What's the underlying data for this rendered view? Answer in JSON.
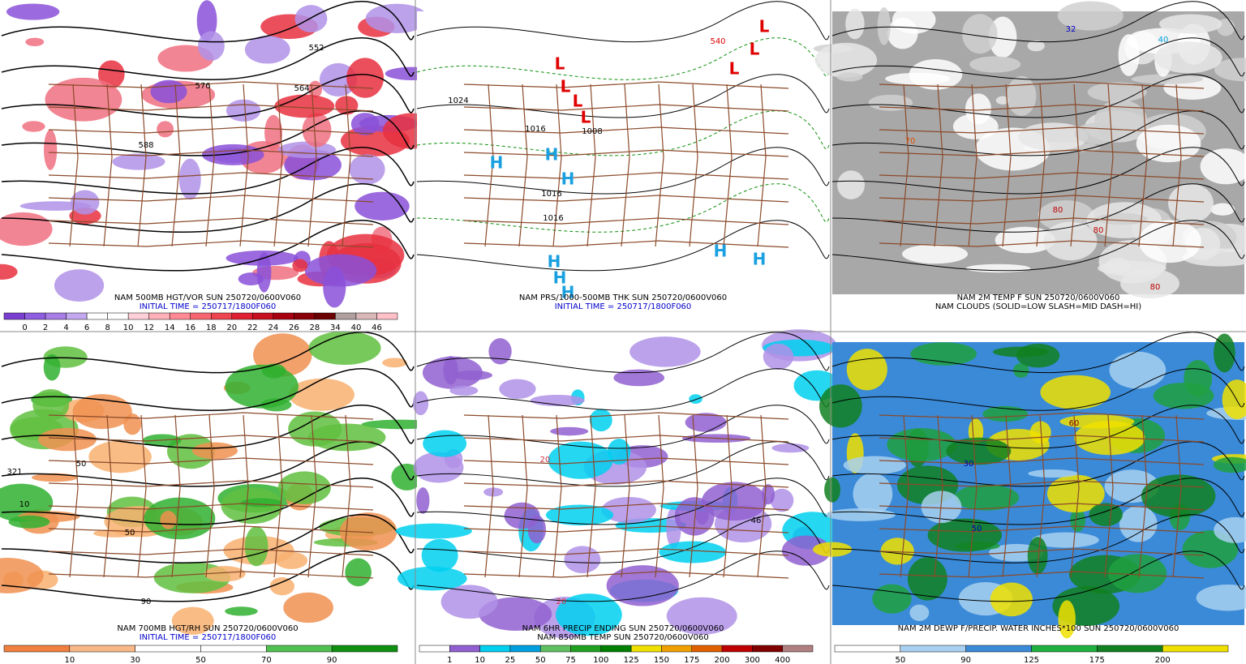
{
  "panels": [
    {
      "caption": "NAM 500MB HGT/VOR SUN 250720/0600V060",
      "subcaption": "INITIAL TIME = 250717/1800F060",
      "subcaption_color": "#0000cc",
      "background": "#ffffff",
      "colorbar": {
        "labels": [
          "0",
          "2",
          "4",
          "6",
          "8",
          "10",
          "12",
          "14",
          "16",
          "18",
          "20",
          "22",
          "24",
          "26",
          "28",
          "34",
          "40",
          "46"
        ],
        "colors": [
          "#7a3fd0",
          "#8f5ee0",
          "#a77ee8",
          "#c3a8f0",
          "#ffffff",
          "#ffffff",
          "#ffd0d8",
          "#ffb0b8",
          "#ff8a94",
          "#f76670",
          "#ee4450",
          "#e02030",
          "#c81020",
          "#a80010",
          "#8a0008",
          "#6a0000",
          "#b0a0a0",
          "#d8b8b8",
          "#ffc0c8"
        ]
      },
      "map_labels": [
        {
          "text": "552",
          "color": "#000000"
        },
        {
          "text": "576",
          "color": "#000000"
        },
        {
          "text": "564",
          "color": "#000000"
        },
        {
          "text": "588",
          "color": "#000000"
        }
      ]
    },
    {
      "caption": "NAM PRS/1000-500MB THK SUN 250720/0600V060",
      "subcaption": "INITIAL TIME = 250717/1800F060",
      "subcaption_color": "#0000cc",
      "background": "#ffffff",
      "map_labels": [
        {
          "text": "1024",
          "color": "#000000"
        },
        {
          "text": "1016",
          "color": "#000000"
        },
        {
          "text": "1008",
          "color": "#000000"
        },
        {
          "text": "1016",
          "color": "#000000"
        },
        {
          "text": "1016",
          "color": "#000000"
        },
        {
          "text": "540",
          "color": "#e00000"
        },
        {
          "text": "L",
          "color": "#e00000"
        },
        {
          "text": "L",
          "color": "#e00000"
        },
        {
          "text": "L",
          "color": "#e00000"
        },
        {
          "text": "L",
          "color": "#e00000"
        },
        {
          "text": "L",
          "color": "#e00000"
        },
        {
          "text": "L",
          "color": "#e00000"
        },
        {
          "text": "L",
          "color": "#e00000"
        },
        {
          "text": "H",
          "color": "#1aa0e0"
        },
        {
          "text": "H",
          "color": "#1aa0e0"
        },
        {
          "text": "H",
          "color": "#1aa0e0"
        },
        {
          "text": "H",
          "color": "#1aa0e0"
        },
        {
          "text": "H",
          "color": "#1aa0e0"
        },
        {
          "text": "H",
          "color": "#1aa0e0"
        },
        {
          "text": "H",
          "color": "#1aa0e0"
        },
        {
          "text": "H",
          "color": "#1aa0e0"
        }
      ]
    },
    {
      "caption": "NAM 2M TEMP F SUN 250720/0600V060",
      "subcaption": "NAM CLOUDS (SOLID=LOW SLASH=MID DASH=HI)",
      "subcaption_color": "#000000",
      "background": "#a8a8a8",
      "map_labels": [
        {
          "text": "70",
          "color": "#e05000"
        },
        {
          "text": "80",
          "color": "#c00000"
        },
        {
          "text": "80",
          "color": "#c00000"
        },
        {
          "text": "80",
          "color": "#c00000"
        },
        {
          "text": "32",
          "color": "#0000cc"
        },
        {
          "text": "40",
          "color": "#00a0e0"
        }
      ]
    },
    {
      "caption": "NAM 700MB HGT/RH SUN 250720/0600V060",
      "subcaption": "INITIAL TIME = 250717/1800F060",
      "subcaption_color": "#0000cc",
      "background": "#ffffff",
      "colorbar": {
        "labels": [
          "10",
          "30",
          "50",
          "70",
          "90"
        ],
        "colors": [
          "#f08040",
          "#f8b888",
          "#ffffff",
          "#ffffff",
          "#50c050",
          "#109010"
        ]
      },
      "map_labels": [
        {
          "text": "10",
          "color": "#000000"
        },
        {
          "text": "50",
          "color": "#000000"
        },
        {
          "text": "321",
          "color": "#000000"
        },
        {
          "text": "50",
          "color": "#000000"
        },
        {
          "text": "90",
          "color": "#000000"
        }
      ]
    },
    {
      "caption": "NAM 6HR PRECIP ENDING SUN 250720/0600V060",
      "subcaption": "NAM 850MB TEMP SUN 250720/0600V060",
      "subcaption_color": "#000000",
      "background": "#ffffff",
      "colorbar": {
        "labels": [
          "1",
          "10",
          "25",
          "50",
          "75",
          "100",
          "125",
          "150",
          "175",
          "200",
          "300",
          "400"
        ],
        "colors": [
          "#ffffff",
          "#9060d0",
          "#00d0f0",
          "#00a0e0",
          "#60c060",
          "#20a020",
          "#008000",
          "#f0e000",
          "#f0a000",
          "#e06000",
          "#c00000",
          "#800000",
          "#b08080"
        ]
      },
      "map_labels": [
        {
          "text": "46",
          "color": "#000000"
        },
        {
          "text": "20",
          "color": "#d03040"
        },
        {
          "text": "20",
          "color": "#d03040"
        }
      ]
    },
    {
      "caption": "NAM 2M DEWP F/PRECIP. WATER INCHES*100 SUN 250720/0600V060",
      "background": "#3a8ad8",
      "colorbar": {
        "labels": [
          "50",
          "90",
          "125",
          "175",
          "200"
        ],
        "colors": [
          "#ffffff",
          "#a8d0f0",
          "#3a8ad8",
          "#20b040",
          "#108020",
          "#f0e000"
        ]
      },
      "map_labels": [
        {
          "text": "30",
          "color": "#0000aa"
        },
        {
          "text": "50",
          "color": "#0000aa"
        },
        {
          "text": "60",
          "color": "#800000"
        }
      ]
    }
  ]
}
